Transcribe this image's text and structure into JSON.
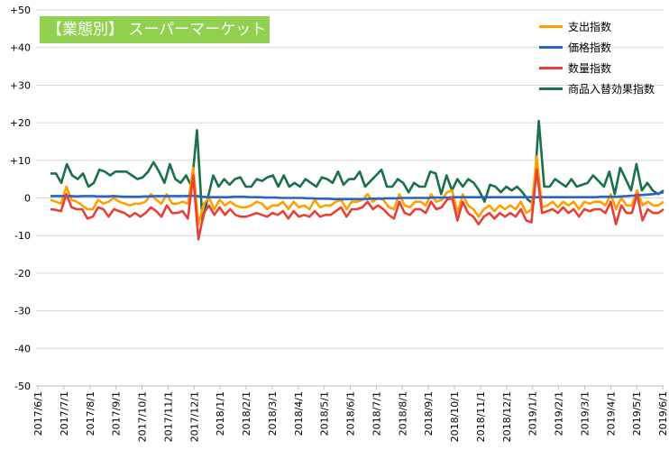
{
  "chart_data": {
    "type": "line",
    "title": "【業態別】 スーパーマーケット",
    "ylim": [
      -50,
      50
    ],
    "yticks": [
      "+50",
      "+40",
      "+30",
      "+20",
      "+10",
      "0",
      "-10",
      "-20",
      "-30",
      "-40",
      "-50"
    ],
    "ytick_values": [
      50,
      40,
      30,
      20,
      10,
      0,
      -10,
      -20,
      -30,
      -40,
      -50
    ],
    "xticks": [
      "2017/6/1",
      "2017/7/1",
      "2017/8/1",
      "2017/9/1",
      "2017/10/1",
      "2017/11/1",
      "2017/12/1",
      "2018/1/1",
      "2018/2/1",
      "2018/3/1",
      "2018/4/1",
      "2018/5/1",
      "2018/6/1",
      "2018/7/1",
      "2018/8/1",
      "2018/9/1",
      "2018/10/1",
      "2018/11/1",
      "2018/12/1",
      "2019/1/1",
      "2019/2/1",
      "2019/3/1",
      "2019/4/1",
      "2019/5/1",
      "2019/6/1"
    ],
    "x_note": "weekly data points",
    "grid": "horizontal",
    "legend_position": "top-right",
    "series": [
      {
        "name": "支出指数",
        "color": "#ffa000",
        "values": [
          -0.5,
          -1,
          -1.5,
          3,
          -0.5,
          -1,
          -2,
          -3,
          -3,
          -0.5,
          -1.5,
          -1,
          0,
          -1,
          -1.5,
          -2,
          -1.5,
          -1.5,
          -1,
          1,
          -0.5,
          -1.5,
          1,
          -1.5,
          -1.5,
          -1,
          -1.5,
          8,
          -7,
          -1.5,
          0,
          -3,
          -0.5,
          -2,
          -1,
          -2,
          -2.5,
          -2.5,
          -2,
          -1,
          -1.5,
          -3,
          -2,
          -2,
          -1,
          -3,
          -1,
          -2.5,
          -2,
          -3,
          -0.5,
          -2.5,
          -2,
          -2,
          -1,
          -0.5,
          -3,
          -1,
          -1,
          -0.5,
          1,
          -1,
          0,
          -0.5,
          -2.5,
          -3,
          1,
          -2,
          -2.5,
          -1,
          -1,
          -2,
          1,
          -1,
          -0.5,
          1.5,
          2,
          -4,
          1,
          -2,
          -3,
          -5,
          -3,
          -2,
          -3.5,
          -2,
          -3,
          -2,
          -3,
          -1,
          -4,
          -3,
          11,
          -2.5,
          -2,
          -1,
          -2.5,
          -1,
          -2,
          -1,
          -3,
          -1,
          -1.5,
          -1,
          -1,
          -2,
          1,
          -3,
          0,
          -2,
          -2,
          2,
          -2,
          -1,
          -2,
          -2,
          -1
        ],
        "label_color": "#ffa000"
      },
      {
        "name": "価格指数",
        "color": "#2a63c4",
        "values": [
          0.5,
          0.5,
          0.5,
          0.5,
          0.5,
          0.4,
          0.5,
          0.5,
          0.5,
          0.4,
          0.4,
          0.4,
          0.5,
          0.4,
          0.3,
          0.3,
          0.3,
          0.3,
          0.4,
          0.4,
          0.5,
          0.5,
          0.5,
          0.5,
          0.5,
          0.5,
          0.5,
          0.6,
          0.5,
          0.3,
          0.2,
          0.2,
          0.2,
          0.2,
          0.2,
          0.3,
          0.3,
          0.3,
          0.2,
          0.2,
          0.2,
          0.1,
          0.1,
          0.1,
          0,
          0,
          0,
          0,
          0,
          -0.1,
          -0.1,
          -0.2,
          -0.2,
          -0.2,
          -0.3,
          -0.3,
          -0.3,
          -0.3,
          -0.3,
          -0.3,
          -0.3,
          -0.2,
          -0.2,
          -0.2,
          -0.1,
          -0.1,
          -0.1,
          0,
          0,
          0,
          0,
          0,
          0,
          0.1,
          0.1,
          0.1,
          0.1,
          0.2,
          0.2,
          0.2,
          0.2,
          0.2,
          0.2,
          0.2,
          0.2,
          0.2,
          0.2,
          0.2,
          0.2,
          0.2,
          0.2,
          0.2,
          0.2,
          0.2,
          0.2,
          0.2,
          0.2,
          0.2,
          0.2,
          0.2,
          0.2,
          0.2,
          0.2,
          0.2,
          0.2,
          0.3,
          0.3,
          0.3,
          0.3,
          0.4,
          0.5,
          0.6,
          0.7,
          0.8,
          0.9,
          1,
          1.2,
          1.5
        ]
      },
      {
        "name": "数量指数",
        "color": "#e6403b",
        "values": [
          -3,
          -3.2,
          -3.5,
          1,
          -2.5,
          -3,
          -3,
          -5.5,
          -5,
          -2.5,
          -3,
          -5,
          -3,
          -3.5,
          -4,
          -5,
          -4,
          -5,
          -4,
          -2.5,
          -3.5,
          -5,
          -2,
          -4,
          -4,
          -3.5,
          -5.5,
          6,
          -11,
          -4,
          -2,
          -4.5,
          -2.5,
          -4.5,
          -3,
          -4.5,
          -5,
          -5,
          -4.5,
          -4,
          -4.5,
          -5,
          -4,
          -4.5,
          -3.5,
          -5.5,
          -3.5,
          -5,
          -4.5,
          -5,
          -3.5,
          -5,
          -4.5,
          -4.5,
          -3.5,
          -2.5,
          -5,
          -3,
          -3,
          -2.5,
          -1,
          -3,
          -2,
          -3,
          -4.5,
          -5.5,
          -1,
          -4,
          -4.5,
          -3,
          -3,
          -4,
          -1,
          -3,
          -2.5,
          -0.5,
          0,
          -6,
          -1,
          -4,
          -5,
          -7,
          -5,
          -4,
          -5.5,
          -4,
          -5,
          -4,
          -5,
          -3,
          -6,
          -6.5,
          7.5,
          -4,
          -3.5,
          -3,
          -4,
          -2.5,
          -4,
          -3,
          -5,
          -3,
          -3.5,
          -3,
          -3,
          -4,
          -1,
          -7,
          -2,
          -4,
          -4,
          1,
          -6,
          -3,
          -4,
          -4,
          -3
        ]
      },
      {
        "name": "商品入替効果指数",
        "color": "#1a7048",
        "values": [
          6.5,
          6.5,
          4,
          9,
          6,
          5,
          6.5,
          3,
          4,
          7.5,
          7,
          6,
          7,
          7,
          7,
          6,
          5,
          5.5,
          7,
          9.5,
          7,
          4,
          9,
          5,
          4,
          6,
          3,
          18,
          -6,
          0,
          6,
          3,
          5,
          3.5,
          5,
          5.5,
          3,
          3,
          5,
          4.5,
          5.5,
          6,
          3,
          6,
          3,
          4,
          3,
          5,
          4,
          3,
          5.5,
          5,
          4,
          7,
          3.5,
          5,
          5,
          7,
          3,
          4.5,
          6,
          7.5,
          3,
          3,
          5,
          4,
          1.5,
          4,
          3,
          3,
          7,
          6.5,
          1,
          6,
          2,
          5,
          3,
          5,
          4,
          2,
          -1,
          3.5,
          3,
          1.5,
          3,
          2,
          3,
          1.5,
          -0.5,
          -1.5,
          20.5,
          3,
          3,
          5,
          4,
          3,
          5,
          3,
          3.5,
          4,
          6,
          4.5,
          3,
          7,
          1,
          8,
          5,
          2,
          9,
          2,
          4,
          2,
          1,
          2
        ]
      }
    ]
  }
}
